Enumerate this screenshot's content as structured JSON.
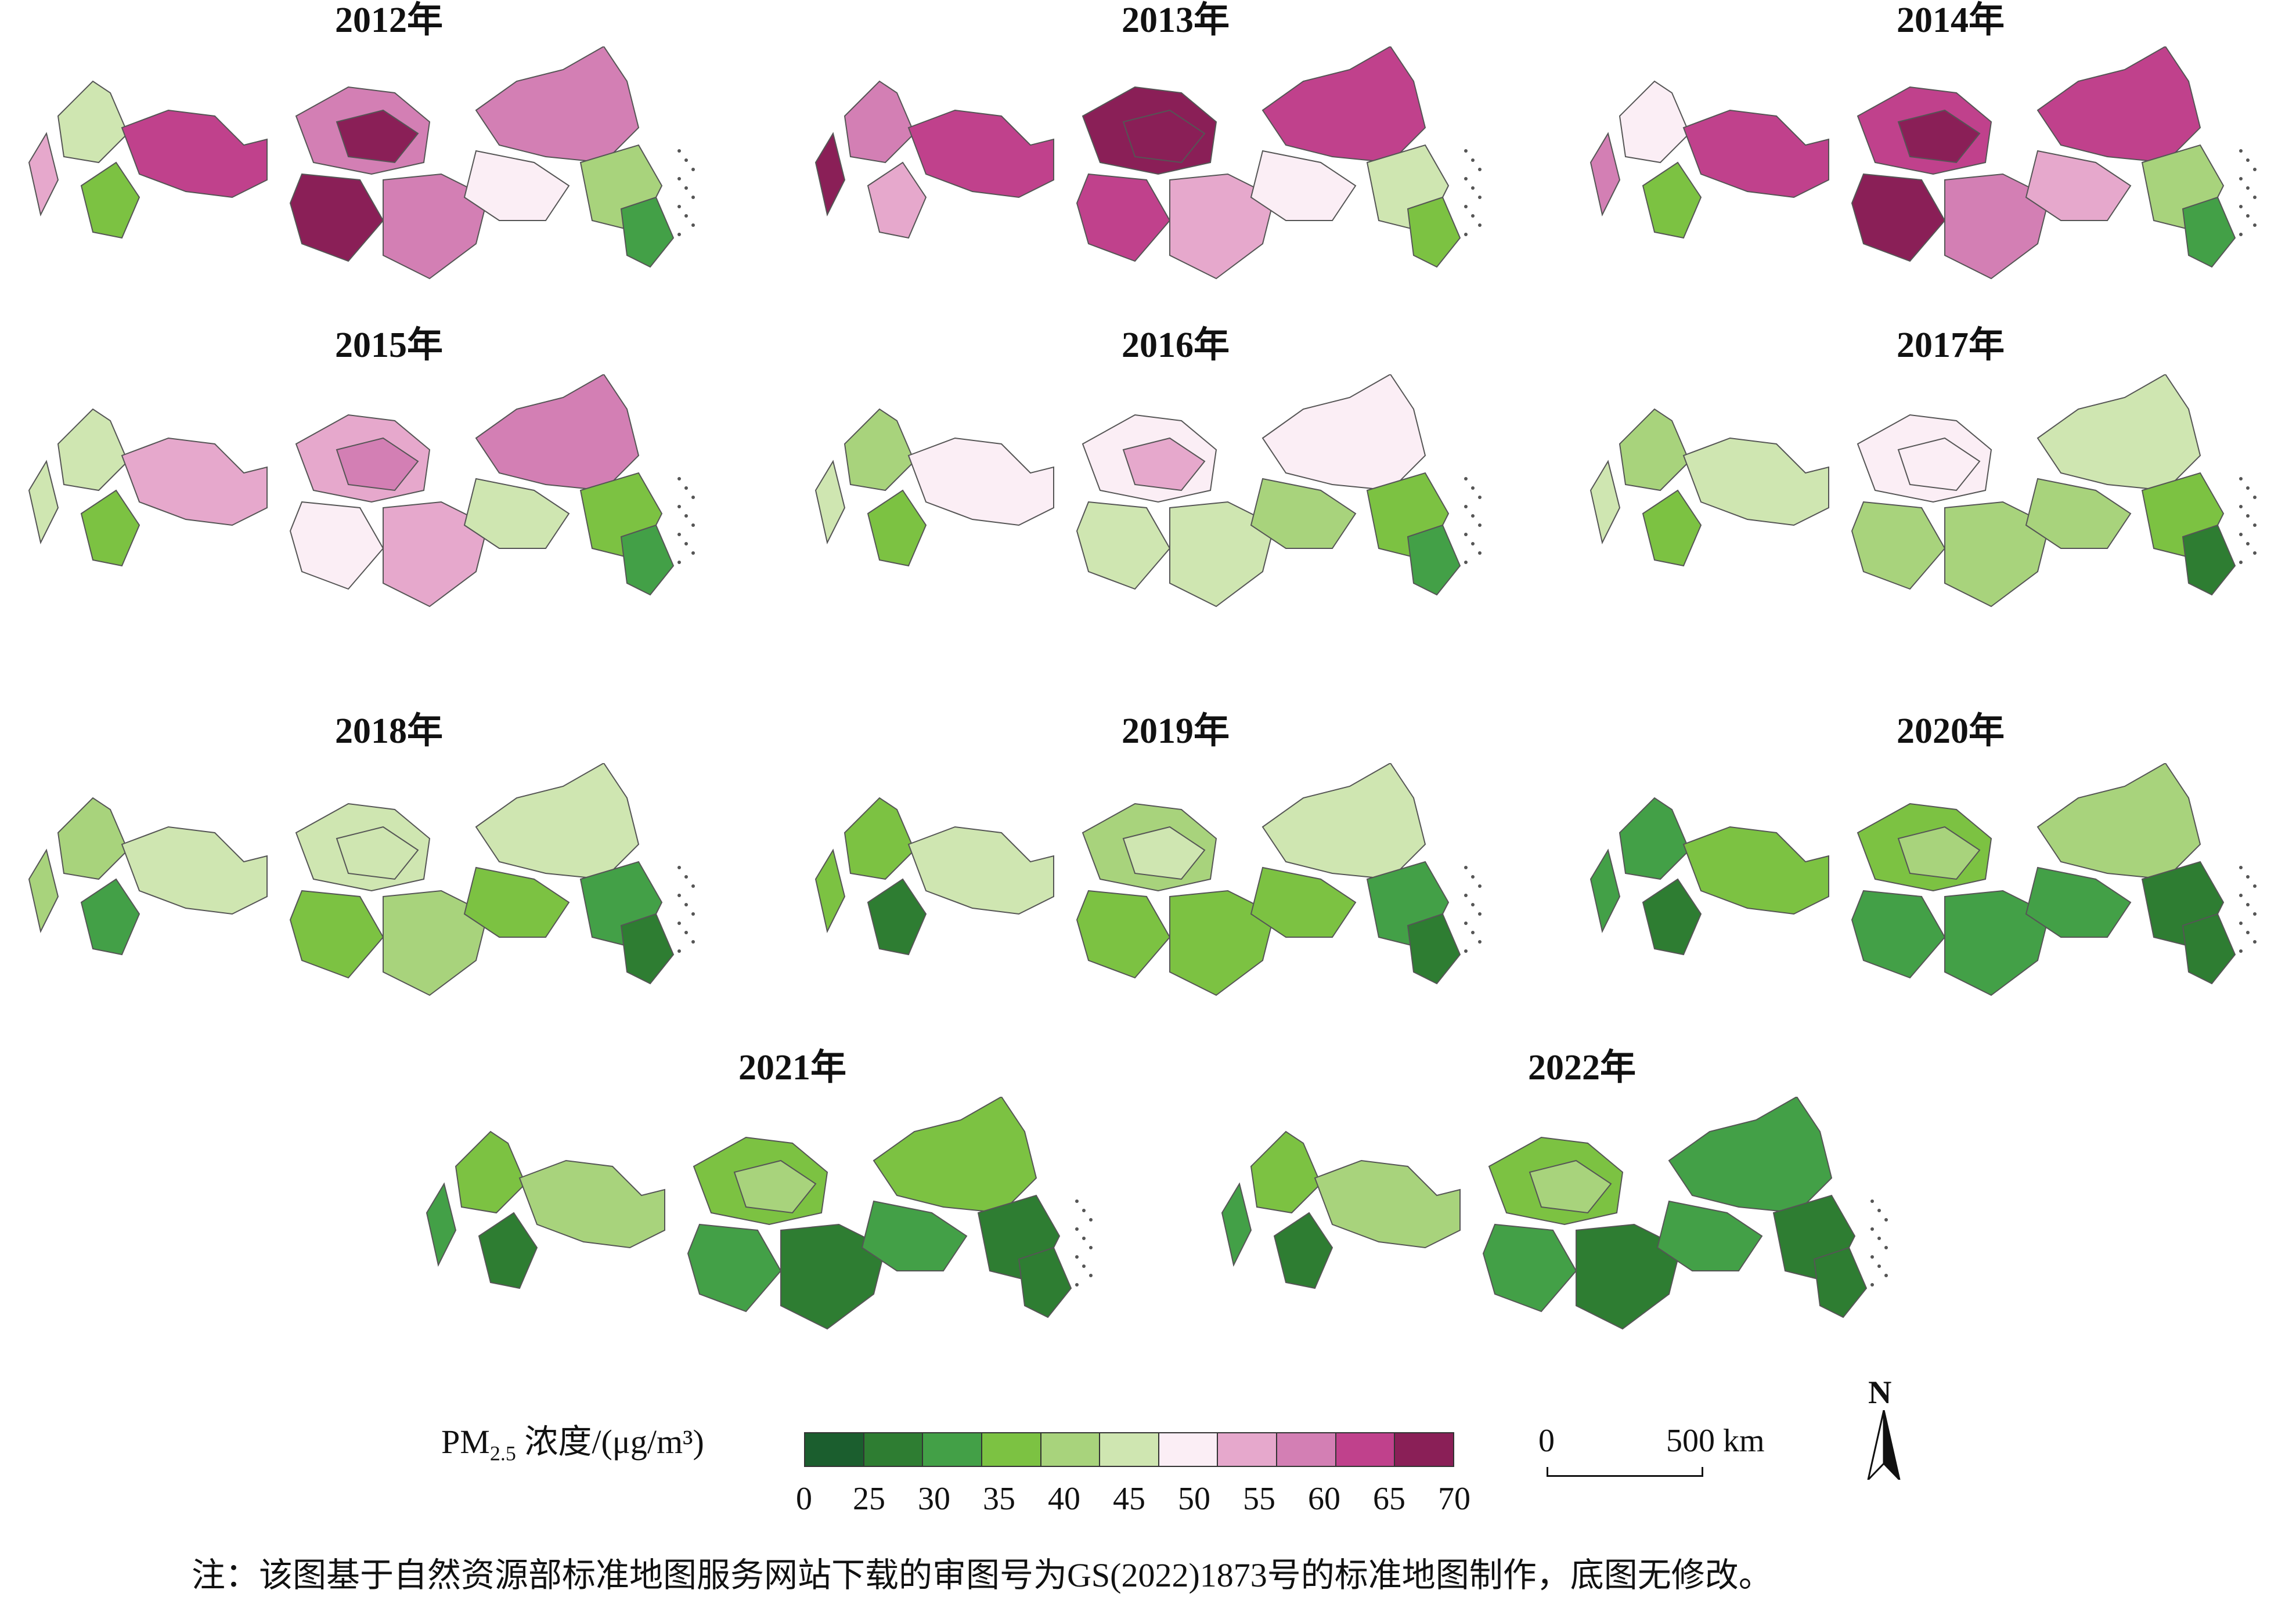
{
  "panels": [
    {
      "year": "2012年",
      "scheme": [
        7,
        5,
        3,
        9,
        8,
        10,
        10,
        8,
        8,
        6,
        4,
        2
      ]
    },
    {
      "year": "2013年",
      "scheme": [
        10,
        8,
        7,
        9,
        10,
        10,
        9,
        7,
        9,
        6,
        5,
        3
      ]
    },
    {
      "year": "2014年",
      "scheme": [
        8,
        6,
        3,
        9,
        9,
        10,
        10,
        8,
        9,
        7,
        4,
        2
      ]
    },
    {
      "year": "2015年",
      "scheme": [
        5,
        5,
        3,
        7,
        7,
        8,
        6,
        7,
        8,
        5,
        3,
        2
      ]
    },
    {
      "year": "2016年",
      "scheme": [
        5,
        4,
        3,
        6,
        6,
        7,
        5,
        5,
        6,
        4,
        3,
        2
      ]
    },
    {
      "year": "2017年",
      "scheme": [
        5,
        4,
        3,
        5,
        6,
        6,
        4,
        4,
        5,
        4,
        3,
        1
      ]
    },
    {
      "year": "2018年",
      "scheme": [
        4,
        4,
        2,
        5,
        5,
        5,
        3,
        4,
        5,
        3,
        2,
        1
      ]
    },
    {
      "year": "2019年",
      "scheme": [
        3,
        3,
        1,
        5,
        4,
        5,
        3,
        3,
        5,
        3,
        2,
        1
      ]
    },
    {
      "year": "2020年",
      "scheme": [
        2,
        2,
        1,
        3,
        3,
        4,
        2,
        2,
        4,
        2,
        1,
        1
      ]
    },
    {
      "year": "2021年",
      "scheme": [
        2,
        3,
        1,
        4,
        3,
        4,
        2,
        1,
        3,
        2,
        1,
        1
      ]
    },
    {
      "year": "2022年",
      "scheme": [
        2,
        3,
        1,
        4,
        3,
        4,
        2,
        1,
        2,
        2,
        1,
        1
      ]
    }
  ],
  "legend": {
    "title_prefix": "PM",
    "title_sub": "2.5",
    "title_suffix": " 浓度/(μg/m³)",
    "classes": [
      {
        "color": "#1b5e2e"
      },
      {
        "color": "#2e7d32"
      },
      {
        "color": "#43a047"
      },
      {
        "color": "#7cc242"
      },
      {
        "color": "#a8d37c"
      },
      {
        "color": "#cfe6b1"
      },
      {
        "color": "#fbeef5"
      },
      {
        "color": "#e6a8cc"
      },
      {
        "color": "#d37fb4"
      },
      {
        "color": "#c0418c"
      },
      {
        "color": "#8a1f57"
      }
    ],
    "ticks": [
      "0",
      "25",
      "30",
      "35",
      "40",
      "45",
      "50",
      "55",
      "60",
      "65",
      "70"
    ]
  },
  "scale_bar": {
    "left_label": "0",
    "right_label": "500 km"
  },
  "north": "N",
  "footnote": "注：该图基于自然资源部标准地图服务网站下载的审图号为GS(2022)1873号的标准地图制作，底图无修改。"
}
